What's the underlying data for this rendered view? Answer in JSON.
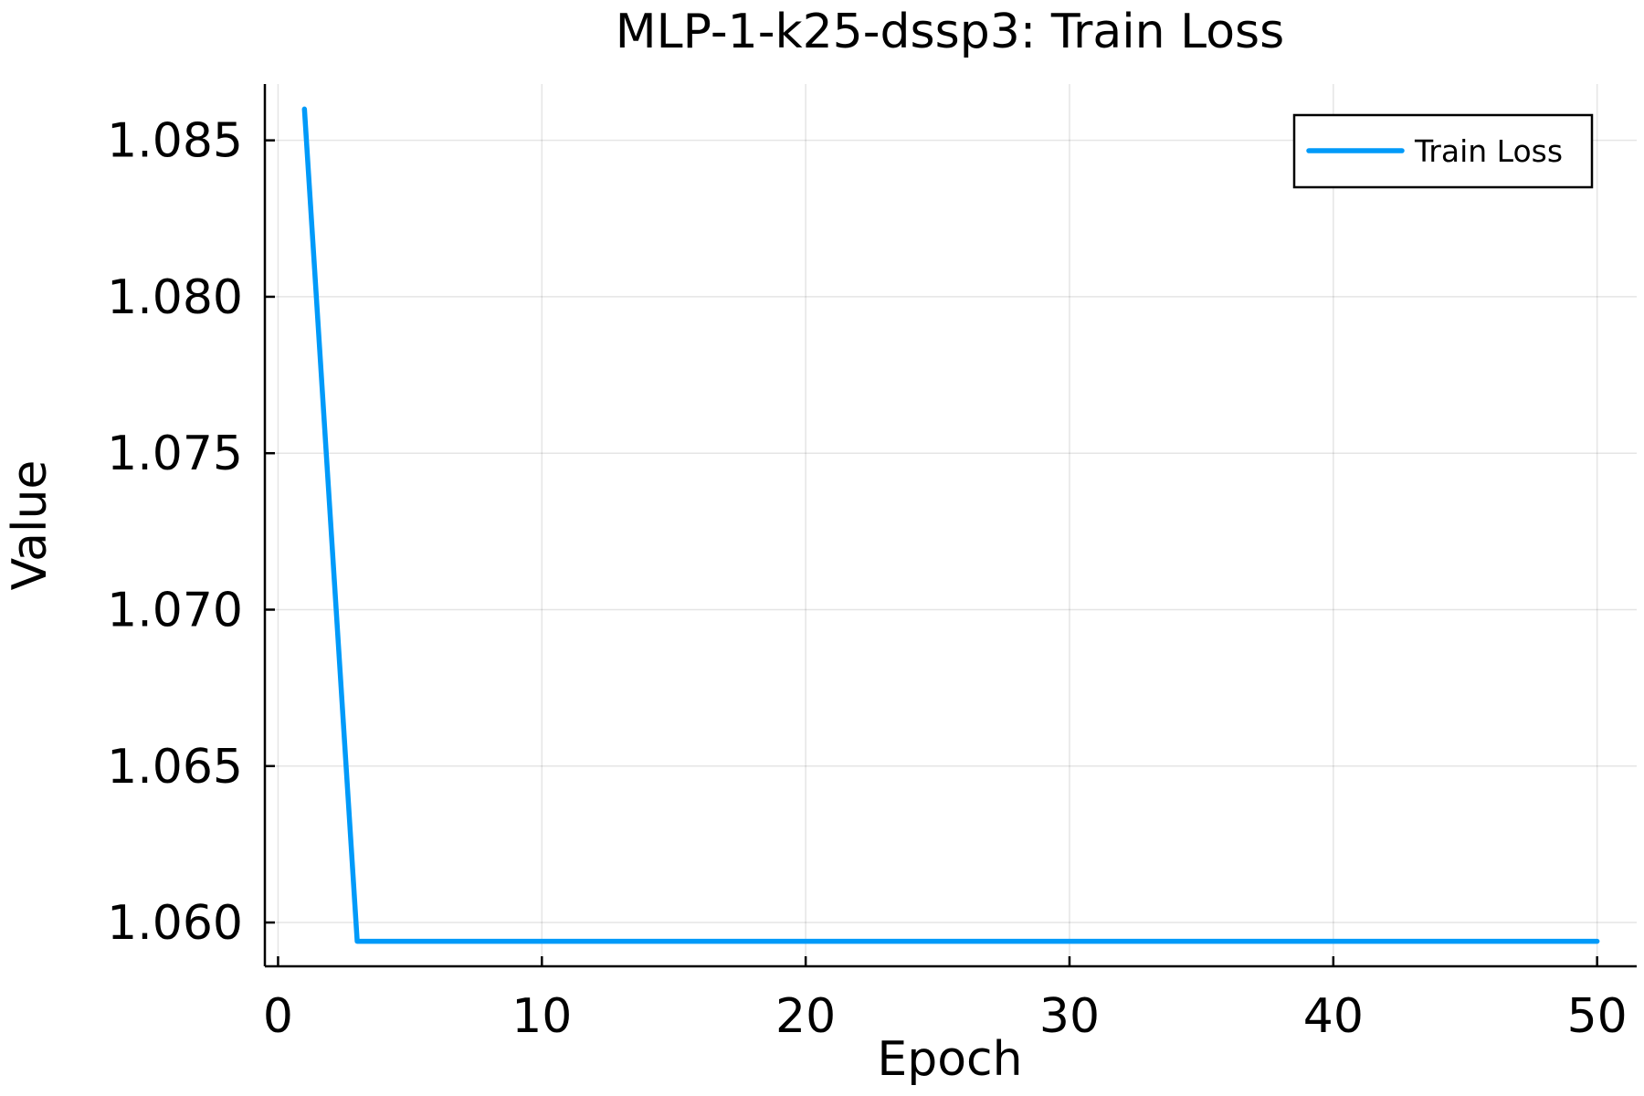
{
  "chart_data": {
    "type": "line",
    "title": "MLP-1-k25-dssp3: Train Loss",
    "xlabel": "Epoch",
    "ylabel": "Value",
    "xlim": [
      -0.5,
      51.5
    ],
    "ylim": [
      1.0586,
      1.0868
    ],
    "xticks": [
      0,
      10,
      20,
      30,
      40,
      50
    ],
    "xtick_labels": [
      "0",
      "10",
      "20",
      "30",
      "40",
      "50"
    ],
    "yticks": [
      1.06,
      1.065,
      1.07,
      1.075,
      1.08,
      1.085
    ],
    "ytick_labels": [
      "1.060",
      "1.065",
      "1.070",
      "1.075",
      "1.080",
      "1.085"
    ],
    "grid": true,
    "legend_position": "top-right",
    "series": [
      {
        "name": "Train Loss",
        "color": "#009af9",
        "x": [
          1,
          2,
          3,
          4,
          5,
          6,
          7,
          8,
          9,
          10,
          11,
          12,
          13,
          14,
          15,
          16,
          17,
          18,
          19,
          20,
          21,
          22,
          23,
          24,
          25,
          26,
          27,
          28,
          29,
          30,
          31,
          32,
          33,
          34,
          35,
          36,
          37,
          38,
          39,
          40,
          41,
          42,
          43,
          44,
          45,
          46,
          47,
          48,
          49,
          50
        ],
        "y": [
          1.086,
          1.0727,
          1.0594,
          1.0594,
          1.0594,
          1.0594,
          1.0594,
          1.0594,
          1.0594,
          1.0594,
          1.0594,
          1.0594,
          1.0594,
          1.0594,
          1.0594,
          1.0594,
          1.0594,
          1.0594,
          1.0594,
          1.0594,
          1.0594,
          1.0594,
          1.0594,
          1.0594,
          1.0594,
          1.0594,
          1.0594,
          1.0594,
          1.0594,
          1.0594,
          1.0594,
          1.0594,
          1.0594,
          1.0594,
          1.0594,
          1.0594,
          1.0594,
          1.0594,
          1.0594,
          1.0594,
          1.0594,
          1.0594,
          1.0594,
          1.0594,
          1.0594,
          1.0594,
          1.0594,
          1.0594,
          1.0594,
          1.0594
        ]
      }
    ]
  }
}
